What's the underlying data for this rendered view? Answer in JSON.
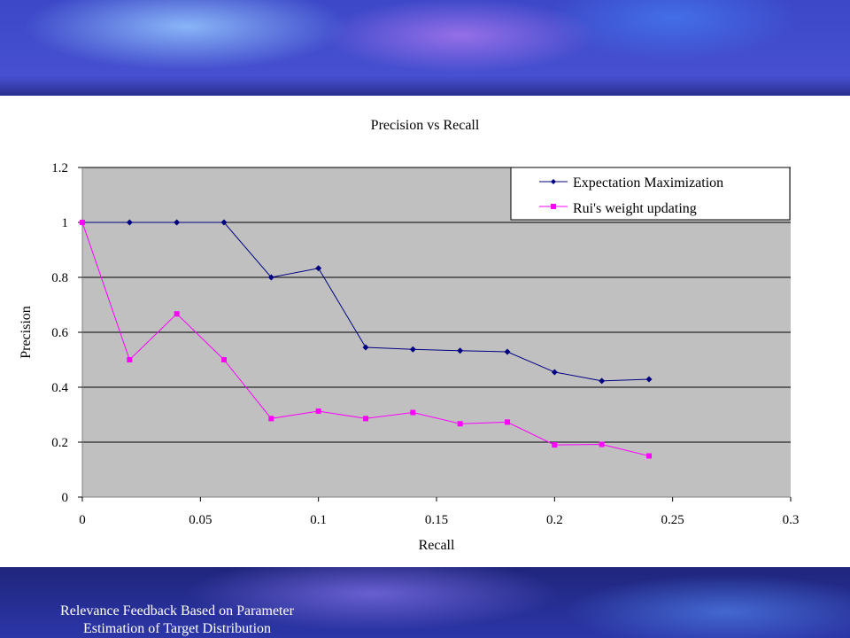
{
  "footer": {
    "line1": "Relevance Feedback Based on Parameter",
    "line2": "Estimation of Target Distribution"
  },
  "colors": {
    "plot_background": "#c0c0c0",
    "gridline": "#000000",
    "series_em": "#000080",
    "series_rui": "#ff00ff"
  },
  "chart_data": {
    "type": "line",
    "title": "Precision vs Recall",
    "xlabel": "Recall",
    "ylabel": "Precision",
    "xlim": [
      0,
      0.3
    ],
    "ylim": [
      0,
      1.2
    ],
    "x_ticks": [
      "0",
      "0.05",
      "0.1",
      "0.15",
      "0.2",
      "0.25",
      "0.3"
    ],
    "y_ticks": [
      "0",
      "0.2",
      "0.4",
      "0.6",
      "0.8",
      "1",
      "1.2"
    ],
    "grid": "horizontal",
    "legend_position": "top-right",
    "series": [
      {
        "name": "Expectation Maximization",
        "marker": "diamond",
        "color": "#000080",
        "x": [
          0,
          0.02,
          0.04,
          0.06,
          0.08,
          0.1,
          0.12,
          0.14,
          0.16,
          0.18,
          0.2,
          0.22,
          0.24
        ],
        "y": [
          1,
          1,
          1,
          1,
          0.8,
          0.833,
          0.545,
          0.538,
          0.533,
          0.529,
          0.455,
          0.423,
          0.429
        ]
      },
      {
        "name": "Rui's weight updating",
        "marker": "square",
        "color": "#ff00ff",
        "x": [
          0,
          0.02,
          0.04,
          0.06,
          0.08,
          0.1,
          0.12,
          0.14,
          0.16,
          0.18,
          0.2,
          0.22,
          0.24
        ],
        "y": [
          1,
          0.5,
          0.667,
          0.5,
          0.286,
          0.313,
          0.286,
          0.308,
          0.267,
          0.273,
          0.19,
          0.192,
          0.15
        ]
      }
    ]
  }
}
